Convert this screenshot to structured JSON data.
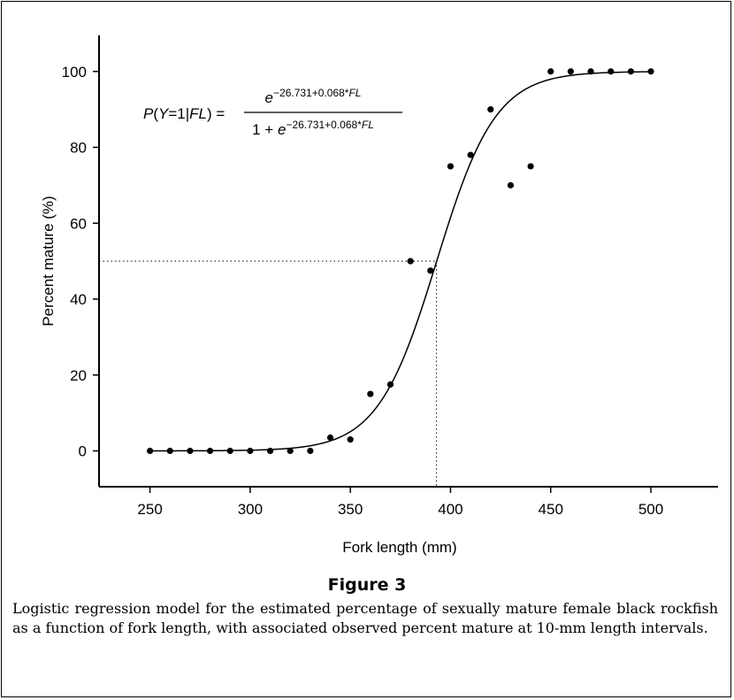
{
  "chart_data": {
    "type": "scatter",
    "xlabel": "Fork length (mm)",
    "ylabel": "Percent mature (%)",
    "xlim": [
      225,
      535
    ],
    "ylim": [
      -10,
      110
    ],
    "xticks": [
      250,
      300,
      350,
      400,
      450,
      500
    ],
    "yticks": [
      0,
      20,
      40,
      60,
      80,
      100
    ],
    "grid": false,
    "points": {
      "x": [
        250,
        260,
        270,
        280,
        290,
        300,
        310,
        320,
        330,
        340,
        350,
        360,
        370,
        380,
        390,
        400,
        410,
        420,
        430,
        440,
        450,
        460,
        470,
        480,
        490,
        500
      ],
      "y": [
        0,
        0,
        0,
        0,
        0,
        0,
        0,
        0,
        0,
        3.5,
        3,
        15,
        17.5,
        50,
        47.5,
        75,
        78,
        90,
        70,
        75,
        100,
        100,
        100,
        100,
        100,
        100
      ]
    },
    "curve": {
      "model": "logistic",
      "intercept": -26.731,
      "slope": 0.068,
      "x_range": [
        250,
        500
      ]
    },
    "reference_lines": {
      "y": 50,
      "x": 393
    }
  },
  "equation": {
    "lhs_p": "P",
    "lhs_open": "(",
    "lhs_Y": "Y",
    "lhs_mid": "=1|",
    "lhs_FL": "FL",
    "lhs_close": ") =",
    "num_e": "e",
    "num_exp": "−26.731+0.068*",
    "num_exp_FL": "FL",
    "den_prefix": "1 + ",
    "den_e": "e",
    "den_exp": "−26.731+0.068*",
    "den_exp_FL": "FL"
  },
  "figure_title": "Figure 3",
  "caption": "Logistic regression model for the estimated percentage of sexually mature female black rockfish as a function of fork length, with associated observed percent mature at 10-mm length intervals."
}
